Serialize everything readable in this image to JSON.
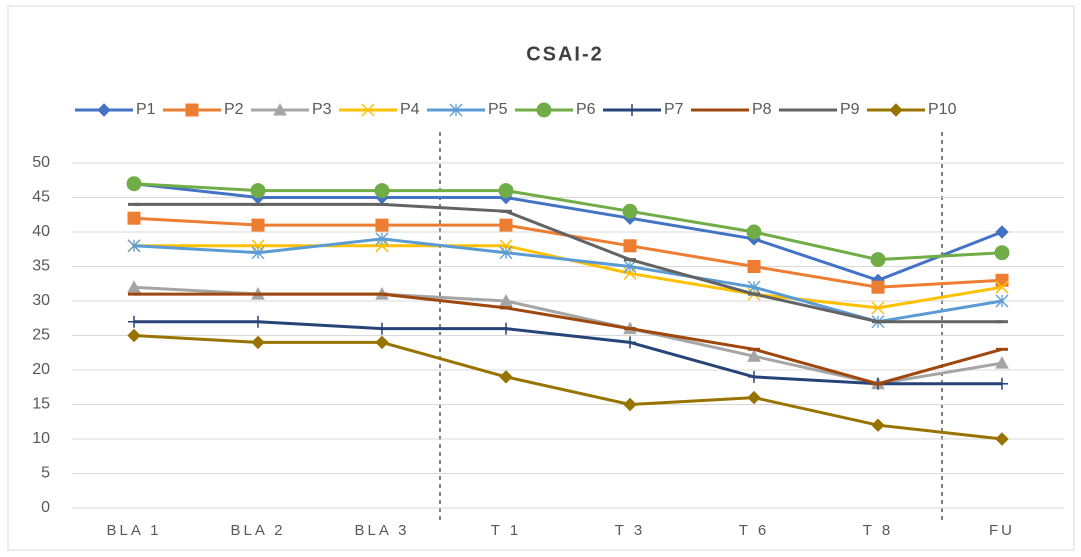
{
  "chart_data": {
    "type": "line",
    "title": "CSAI-2",
    "categories": [
      "BLA 1",
      "BLA 2",
      "BLA 3",
      "T 1",
      "T 3",
      "T 6",
      "T 8",
      "FU"
    ],
    "ylim": [
      0,
      50
    ],
    "yticks": [
      0,
      5,
      10,
      15,
      20,
      25,
      30,
      35,
      40,
      45,
      50
    ],
    "grid": true,
    "legend": "top",
    "series": [
      {
        "name": "P1",
        "color": "#4472c4",
        "marker": "diamond",
        "values": [
          47,
          45,
          45,
          45,
          42,
          39,
          33,
          40
        ]
      },
      {
        "name": "P2",
        "color": "#ed7d31",
        "marker": "square",
        "values": [
          42,
          41,
          41,
          41,
          38,
          35,
          32,
          33
        ]
      },
      {
        "name": "P3",
        "color": "#a5a5a5",
        "marker": "triangle",
        "values": [
          32,
          31,
          31,
          30,
          26,
          22,
          18,
          21
        ]
      },
      {
        "name": "P4",
        "color": "#ffc000",
        "marker": "x",
        "values": [
          38,
          38,
          38,
          38,
          34,
          31,
          29,
          32
        ]
      },
      {
        "name": "P5",
        "color": "#5b9bd5",
        "marker": "star",
        "values": [
          38,
          37,
          39,
          37,
          35,
          32,
          27,
          30
        ]
      },
      {
        "name": "P6",
        "color": "#70ad47",
        "marker": "circle",
        "values": [
          47,
          46,
          46,
          46,
          43,
          40,
          36,
          37
        ]
      },
      {
        "name": "P7",
        "color": "#264478",
        "marker": "plus",
        "values": [
          27,
          27,
          26,
          26,
          24,
          19,
          18,
          18
        ]
      },
      {
        "name": "P8",
        "color": "#9e480e",
        "marker": "dash",
        "values": [
          31,
          31,
          31,
          29,
          26,
          23,
          18,
          23
        ]
      },
      {
        "name": "P9",
        "color": "#636363",
        "marker": "dash",
        "values": [
          44,
          44,
          44,
          43,
          36,
          31,
          27,
          27
        ]
      },
      {
        "name": "P10",
        "color": "#997300",
        "marker": "diamond",
        "values": [
          25,
          24,
          24,
          19,
          15,
          16,
          12,
          10
        ]
      }
    ]
  }
}
